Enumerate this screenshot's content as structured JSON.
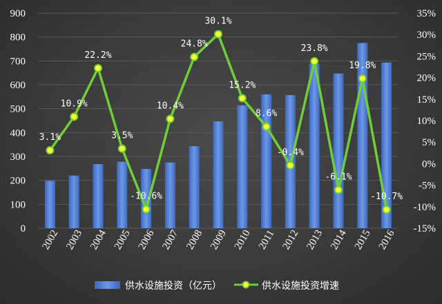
{
  "chart_data": {
    "type": "bar+line",
    "categories": [
      "2002",
      "2003",
      "2004",
      "2005",
      "2006",
      "2007",
      "2008",
      "2009",
      "2010",
      "2011",
      "2012",
      "2013",
      "2014",
      "2015",
      "2016"
    ],
    "series": [
      {
        "name": "供水设施投资（亿元）",
        "type": "bar",
        "axis": "left",
        "values": [
          198,
          220,
          268,
          278,
          248,
          275,
          343,
          447,
          514,
          560,
          557,
          688,
          647,
          775,
          693
        ]
      },
      {
        "name": "供水设施投资增速",
        "type": "line",
        "axis": "right",
        "values": [
          3.1,
          10.9,
          22.2,
          3.5,
          -10.6,
          10.4,
          24.8,
          30.1,
          15.2,
          8.6,
          -0.4,
          23.8,
          -6.1,
          19.8,
          -10.7
        ],
        "labels": [
          "3.1%",
          "10.9%",
          "22.2%",
          "3.5%",
          "-10.6%",
          "10.4%",
          "24.8%",
          "30.1%",
          "15.2%",
          "8.6%",
          "-0.4%",
          "23.8%",
          "-6.1%",
          "19.8%",
          "-10.7%"
        ]
      }
    ],
    "y_left": {
      "min": 0,
      "max": 900,
      "step": 100,
      "ticks": [
        "0",
        "100",
        "200",
        "300",
        "400",
        "500",
        "600",
        "700",
        "800",
        "900"
      ]
    },
    "y_right": {
      "min": -15,
      "max": 35,
      "step": 5,
      "ticks": [
        "-15%",
        "-10%",
        "-5%",
        "0%",
        "5%",
        "10%",
        "15%",
        "20%",
        "25%",
        "30%",
        "35%"
      ]
    },
    "grid": true,
    "legend_position": "bottom",
    "colors": {
      "bar": "#4a78d0",
      "bar_light": "#6d97e6",
      "line": "#6fcf3a",
      "marker_fill": "#ffff33",
      "marker_edge": "#6fcf3a",
      "grid": "#5a5a5a"
    }
  }
}
